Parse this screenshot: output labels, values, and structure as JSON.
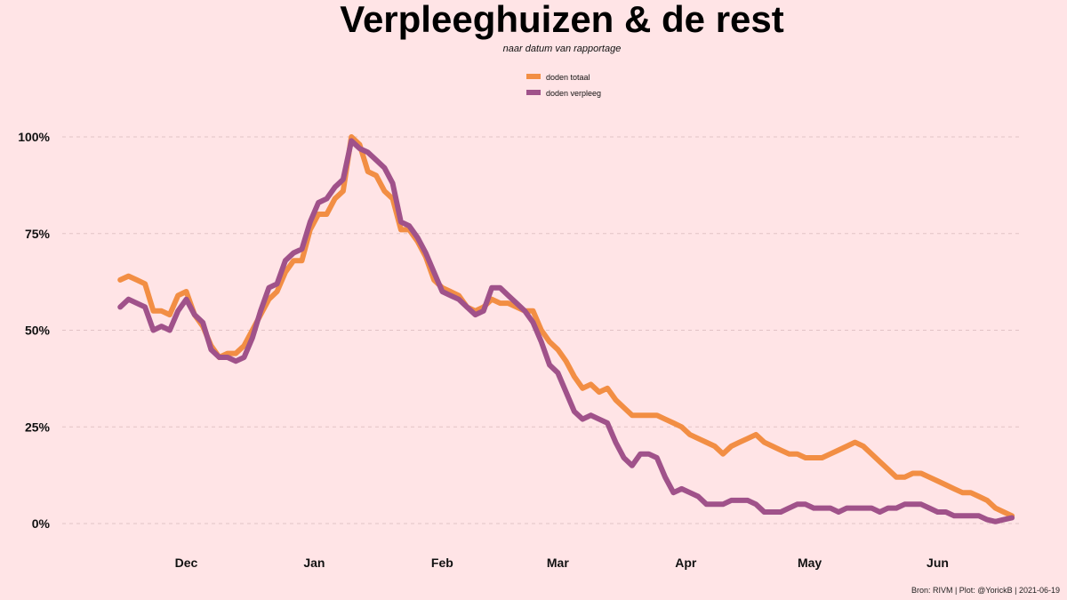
{
  "chart_data": {
    "type": "line",
    "title": "Verpleeghuizen & de rest",
    "subtitle": "naar datum van rapportage",
    "caption": "Bron: RIVM | Plot: @YorickB  |  2021-06-19",
    "legend_position": "top-center",
    "grid": "horizontal dashed",
    "x_axis": {
      "type": "date",
      "range": [
        "2020-11-10",
        "2021-06-22"
      ],
      "ticks": [
        {
          "label": "Dec",
          "date": "2020-12-01"
        },
        {
          "label": "Jan",
          "date": "2021-01-01"
        },
        {
          "label": "Feb",
          "date": "2021-02-01"
        },
        {
          "label": "Mar",
          "date": "2021-03-01"
        },
        {
          "label": "Apr",
          "date": "2021-04-01"
        },
        {
          "label": "May",
          "date": "2021-05-01"
        },
        {
          "label": "Jun",
          "date": "2021-06-01"
        }
      ]
    },
    "y_axis": {
      "ylim": [
        0,
        100
      ],
      "ticks": [
        {
          "value": 0,
          "label": "0%"
        },
        {
          "value": 25,
          "label": "25%"
        },
        {
          "value": 50,
          "label": "50%"
        },
        {
          "value": 75,
          "label": "75%"
        },
        {
          "value": 100,
          "label": "100%"
        }
      ]
    },
    "series": [
      {
        "name": "doden totaal",
        "color": "#f28e44",
        "points": [
          [
            "2020-11-15",
            63
          ],
          [
            "2020-11-17",
            64
          ],
          [
            "2020-11-19",
            63
          ],
          [
            "2020-11-21",
            62
          ],
          [
            "2020-11-23",
            55
          ],
          [
            "2020-11-25",
            55
          ],
          [
            "2020-11-27",
            54
          ],
          [
            "2020-11-29",
            59
          ],
          [
            "2020-12-01",
            60
          ],
          [
            "2020-12-03",
            54
          ],
          [
            "2020-12-05",
            51
          ],
          [
            "2020-12-07",
            46
          ],
          [
            "2020-12-09",
            43
          ],
          [
            "2020-12-11",
            44
          ],
          [
            "2020-12-13",
            44
          ],
          [
            "2020-12-15",
            46
          ],
          [
            "2020-12-17",
            50
          ],
          [
            "2020-12-19",
            54
          ],
          [
            "2020-12-21",
            58
          ],
          [
            "2020-12-23",
            60
          ],
          [
            "2020-12-25",
            65
          ],
          [
            "2020-12-27",
            68
          ],
          [
            "2020-12-29",
            68
          ],
          [
            "2020-12-31",
            76
          ],
          [
            "2021-01-02",
            80
          ],
          [
            "2021-01-04",
            80
          ],
          [
            "2021-01-06",
            84
          ],
          [
            "2021-01-08",
            86
          ],
          [
            "2021-01-10",
            100
          ],
          [
            "2021-01-12",
            98
          ],
          [
            "2021-01-14",
            91
          ],
          [
            "2021-01-16",
            90
          ],
          [
            "2021-01-18",
            86
          ],
          [
            "2021-01-20",
            84
          ],
          [
            "2021-01-22",
            76
          ],
          [
            "2021-01-24",
            76
          ],
          [
            "2021-01-26",
            73
          ],
          [
            "2021-01-28",
            69
          ],
          [
            "2021-01-30",
            63
          ],
          [
            "2021-02-01",
            61
          ],
          [
            "2021-02-03",
            60
          ],
          [
            "2021-02-05",
            59
          ],
          [
            "2021-02-07",
            56
          ],
          [
            "2021-02-09",
            55
          ],
          [
            "2021-02-11",
            56
          ],
          [
            "2021-02-13",
            58
          ],
          [
            "2021-02-15",
            57
          ],
          [
            "2021-02-17",
            57
          ],
          [
            "2021-02-19",
            56
          ],
          [
            "2021-02-21",
            55
          ],
          [
            "2021-02-23",
            55
          ],
          [
            "2021-02-25",
            50
          ],
          [
            "2021-02-27",
            47
          ],
          [
            "2021-03-01",
            45
          ],
          [
            "2021-03-03",
            42
          ],
          [
            "2021-03-05",
            38
          ],
          [
            "2021-03-07",
            35
          ],
          [
            "2021-03-09",
            36
          ],
          [
            "2021-03-11",
            34
          ],
          [
            "2021-03-13",
            35
          ],
          [
            "2021-03-15",
            32
          ],
          [
            "2021-03-17",
            30
          ],
          [
            "2021-03-19",
            28
          ],
          [
            "2021-03-21",
            28
          ],
          [
            "2021-03-23",
            28
          ],
          [
            "2021-03-25",
            28
          ],
          [
            "2021-03-27",
            27
          ],
          [
            "2021-03-29",
            26
          ],
          [
            "2021-03-31",
            25
          ],
          [
            "2021-04-02",
            23
          ],
          [
            "2021-04-04",
            22
          ],
          [
            "2021-04-06",
            21
          ],
          [
            "2021-04-08",
            20
          ],
          [
            "2021-04-10",
            18
          ],
          [
            "2021-04-12",
            20
          ],
          [
            "2021-04-14",
            21
          ],
          [
            "2021-04-16",
            22
          ],
          [
            "2021-04-18",
            23
          ],
          [
            "2021-04-20",
            21
          ],
          [
            "2021-04-22",
            20
          ],
          [
            "2021-04-24",
            19
          ],
          [
            "2021-04-26",
            18
          ],
          [
            "2021-04-28",
            18
          ],
          [
            "2021-04-30",
            17
          ],
          [
            "2021-05-02",
            17
          ],
          [
            "2021-05-04",
            17
          ],
          [
            "2021-05-06",
            18
          ],
          [
            "2021-05-08",
            19
          ],
          [
            "2021-05-10",
            20
          ],
          [
            "2021-05-12",
            21
          ],
          [
            "2021-05-14",
            20
          ],
          [
            "2021-05-16",
            18
          ],
          [
            "2021-05-18",
            16
          ],
          [
            "2021-05-20",
            14
          ],
          [
            "2021-05-22",
            12
          ],
          [
            "2021-05-24",
            12
          ],
          [
            "2021-05-26",
            13
          ],
          [
            "2021-05-28",
            13
          ],
          [
            "2021-05-30",
            12
          ],
          [
            "2021-06-01",
            11
          ],
          [
            "2021-06-03",
            10
          ],
          [
            "2021-06-05",
            9
          ],
          [
            "2021-06-07",
            8
          ],
          [
            "2021-06-09",
            8
          ],
          [
            "2021-06-11",
            7
          ],
          [
            "2021-06-13",
            6
          ],
          [
            "2021-06-15",
            4
          ],
          [
            "2021-06-17",
            3
          ],
          [
            "2021-06-19",
            2
          ]
        ]
      },
      {
        "name": "doden verpleeg",
        "color": "#a0528a",
        "points": [
          [
            "2020-11-15",
            56
          ],
          [
            "2020-11-17",
            58
          ],
          [
            "2020-11-19",
            57
          ],
          [
            "2020-11-21",
            56
          ],
          [
            "2020-11-23",
            50
          ],
          [
            "2020-11-25",
            51
          ],
          [
            "2020-11-27",
            50
          ],
          [
            "2020-11-29",
            55
          ],
          [
            "2020-12-01",
            58
          ],
          [
            "2020-12-03",
            54
          ],
          [
            "2020-12-05",
            52
          ],
          [
            "2020-12-07",
            45
          ],
          [
            "2020-12-09",
            43
          ],
          [
            "2020-12-11",
            43
          ],
          [
            "2020-12-13",
            42
          ],
          [
            "2020-12-15",
            43
          ],
          [
            "2020-12-17",
            48
          ],
          [
            "2020-12-19",
            55
          ],
          [
            "2020-12-21",
            61
          ],
          [
            "2020-12-23",
            62
          ],
          [
            "2020-12-25",
            68
          ],
          [
            "2020-12-27",
            70
          ],
          [
            "2020-12-29",
            71
          ],
          [
            "2020-12-31",
            78
          ],
          [
            "2021-01-02",
            83
          ],
          [
            "2021-01-04",
            84
          ],
          [
            "2021-01-06",
            87
          ],
          [
            "2021-01-08",
            89
          ],
          [
            "2021-01-10",
            99
          ],
          [
            "2021-01-12",
            97
          ],
          [
            "2021-01-14",
            96
          ],
          [
            "2021-01-16",
            94
          ],
          [
            "2021-01-18",
            92
          ],
          [
            "2021-01-20",
            88
          ],
          [
            "2021-01-22",
            78
          ],
          [
            "2021-01-24",
            77
          ],
          [
            "2021-01-26",
            74
          ],
          [
            "2021-01-28",
            70
          ],
          [
            "2021-01-30",
            65
          ],
          [
            "2021-02-01",
            60
          ],
          [
            "2021-02-03",
            59
          ],
          [
            "2021-02-05",
            58
          ],
          [
            "2021-02-07",
            56
          ],
          [
            "2021-02-09",
            54
          ],
          [
            "2021-02-11",
            55
          ],
          [
            "2021-02-13",
            61
          ],
          [
            "2021-02-15",
            61
          ],
          [
            "2021-02-17",
            59
          ],
          [
            "2021-02-19",
            57
          ],
          [
            "2021-02-21",
            55
          ],
          [
            "2021-02-23",
            52
          ],
          [
            "2021-02-25",
            47
          ],
          [
            "2021-02-27",
            41
          ],
          [
            "2021-03-01",
            39
          ],
          [
            "2021-03-03",
            34
          ],
          [
            "2021-03-05",
            29
          ],
          [
            "2021-03-07",
            27
          ],
          [
            "2021-03-09",
            28
          ],
          [
            "2021-03-11",
            27
          ],
          [
            "2021-03-13",
            26
          ],
          [
            "2021-03-15",
            21
          ],
          [
            "2021-03-17",
            17
          ],
          [
            "2021-03-19",
            15
          ],
          [
            "2021-03-21",
            18
          ],
          [
            "2021-03-23",
            18
          ],
          [
            "2021-03-25",
            17
          ],
          [
            "2021-03-27",
            12
          ],
          [
            "2021-03-29",
            8
          ],
          [
            "2021-03-31",
            9
          ],
          [
            "2021-04-02",
            8
          ],
          [
            "2021-04-04",
            7
          ],
          [
            "2021-04-06",
            5
          ],
          [
            "2021-04-08",
            5
          ],
          [
            "2021-04-10",
            5
          ],
          [
            "2021-04-12",
            6
          ],
          [
            "2021-04-14",
            6
          ],
          [
            "2021-04-16",
            6
          ],
          [
            "2021-04-18",
            5
          ],
          [
            "2021-04-20",
            3
          ],
          [
            "2021-04-22",
            3
          ],
          [
            "2021-04-24",
            3
          ],
          [
            "2021-04-26",
            4
          ],
          [
            "2021-04-28",
            5
          ],
          [
            "2021-04-30",
            5
          ],
          [
            "2021-05-02",
            4
          ],
          [
            "2021-05-04",
            4
          ],
          [
            "2021-05-06",
            4
          ],
          [
            "2021-05-08",
            3
          ],
          [
            "2021-05-10",
            4
          ],
          [
            "2021-05-12",
            4
          ],
          [
            "2021-05-14",
            4
          ],
          [
            "2021-05-16",
            4
          ],
          [
            "2021-05-18",
            3
          ],
          [
            "2021-05-20",
            4
          ],
          [
            "2021-05-22",
            4
          ],
          [
            "2021-05-24",
            5
          ],
          [
            "2021-05-26",
            5
          ],
          [
            "2021-05-28",
            5
          ],
          [
            "2021-05-30",
            4
          ],
          [
            "2021-06-01",
            3
          ],
          [
            "2021-06-03",
            3
          ],
          [
            "2021-06-05",
            2
          ],
          [
            "2021-06-07",
            2
          ],
          [
            "2021-06-09",
            2
          ],
          [
            "2021-06-11",
            2
          ],
          [
            "2021-06-13",
            1
          ],
          [
            "2021-06-15",
            0.5
          ],
          [
            "2021-06-17",
            1
          ],
          [
            "2021-06-19",
            1.5
          ]
        ]
      }
    ]
  }
}
